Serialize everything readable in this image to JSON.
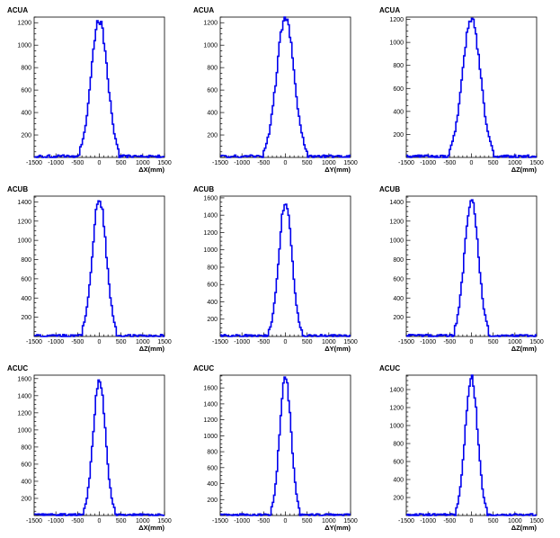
{
  "chart_data": [
    {
      "type": "bar",
      "title": "ACUA",
      "xlabel": "ΔX(mm)",
      "xlim": [
        -1500,
        1500
      ],
      "ylim": [
        0,
        1250
      ],
      "xticks": [
        -1500,
        -1000,
        -500,
        0,
        500,
        1000,
        1500
      ],
      "yticks": [
        200,
        400,
        600,
        800,
        1000,
        1200
      ],
      "peak": 1200,
      "sigma": 185,
      "noise": 15,
      "seed": 3,
      "series": []
    },
    {
      "type": "bar",
      "title": "ACUA",
      "xlabel": "ΔY(mm)",
      "xlim": [
        -1500,
        1500
      ],
      "ylim": [
        0,
        1250
      ],
      "xticks": [
        -1500,
        -1000,
        -500,
        0,
        500,
        1000,
        1500
      ],
      "yticks": [
        200,
        400,
        600,
        800,
        1000,
        1200
      ],
      "peak": 1220,
      "sigma": 200,
      "noise": 15,
      "seed": 7,
      "series": []
    },
    {
      "type": "bar",
      "title": "ACUA",
      "xlabel": "ΔZ(mm)",
      "xlim": [
        -1500,
        1500
      ],
      "ylim": [
        0,
        1220
      ],
      "xticks": [
        -1500,
        -1000,
        -500,
        0,
        500,
        1000,
        1500
      ],
      "yticks": [
        200,
        400,
        600,
        800,
        1000,
        1200
      ],
      "peak": 1180,
      "sigma": 205,
      "noise": 14,
      "seed": 11,
      "series": []
    },
    {
      "type": "bar",
      "title": "ACUB",
      "xlabel": "ΔZ(mm)",
      "xlim": [
        -1500,
        1500
      ],
      "ylim": [
        0,
        1460
      ],
      "xticks": [
        -1500,
        -1000,
        -500,
        0,
        500,
        1000,
        1500
      ],
      "yticks": [
        200,
        400,
        600,
        800,
        1000,
        1200,
        1400
      ],
      "peak": 1410,
      "sigma": 160,
      "noise": 14,
      "seed": 13,
      "series": []
    },
    {
      "type": "bar",
      "title": "ACUB",
      "xlabel": "ΔY(mm)",
      "xlim": [
        -1500,
        1500
      ],
      "ylim": [
        0,
        1620
      ],
      "xticks": [
        -1500,
        -1000,
        -500,
        0,
        500,
        1000,
        1500
      ],
      "yticks": [
        200,
        400,
        600,
        800,
        1000,
        1200,
        1400,
        1600
      ],
      "peak": 1520,
      "sigma": 150,
      "noise": 14,
      "seed": 17,
      "series": []
    },
    {
      "type": "bar",
      "title": "ACUB",
      "xlabel": "ΔZ(mm)",
      "xlim": [
        -1500,
        1500
      ],
      "ylim": [
        0,
        1460
      ],
      "xticks": [
        -1500,
        -1000,
        -500,
        0,
        500,
        1000,
        1500
      ],
      "yticks": [
        200,
        400,
        600,
        800,
        1000,
        1200,
        1400
      ],
      "peak": 1410,
      "sigma": 160,
      "noise": 14,
      "seed": 19,
      "series": []
    },
    {
      "type": "bar",
      "title": "ACUC",
      "xlabel": "ΔX(mm)",
      "xlim": [
        -1500,
        1500
      ],
      "ylim": [
        0,
        1640
      ],
      "xticks": [
        -1500,
        -1000,
        -500,
        0,
        500,
        1000,
        1500
      ],
      "yticks": [
        200,
        400,
        600,
        800,
        1000,
        1200,
        1400,
        1600
      ],
      "peak": 1560,
      "sigma": 140,
      "noise": 14,
      "seed": 23,
      "series": []
    },
    {
      "type": "bar",
      "title": "ACUC",
      "xlabel": "ΔY(mm)",
      "xlim": [
        -1500,
        1500
      ],
      "ylim": [
        0,
        1760
      ],
      "xticks": [
        -1500,
        -1000,
        -500,
        0,
        500,
        1000,
        1500
      ],
      "yticks": [
        200,
        400,
        600,
        800,
        1000,
        1200,
        1400,
        1600
      ],
      "peak": 1710,
      "sigma": 130,
      "noise": 14,
      "seed": 29,
      "series": []
    },
    {
      "type": "bar",
      "title": "ACUC",
      "xlabel": "ΔZ(mm)",
      "xlim": [
        -1500,
        1500
      ],
      "ylim": [
        0,
        1560
      ],
      "xticks": [
        -1500,
        -1000,
        -500,
        0,
        500,
        1000,
        1500
      ],
      "yticks": [
        200,
        400,
        600,
        800,
        1000,
        1200,
        1400
      ],
      "peak": 1520,
      "sigma": 140,
      "noise": 14,
      "seed": 31,
      "series": []
    }
  ],
  "style": {
    "line_color": "#0000ee",
    "axis_color": "#000000"
  }
}
